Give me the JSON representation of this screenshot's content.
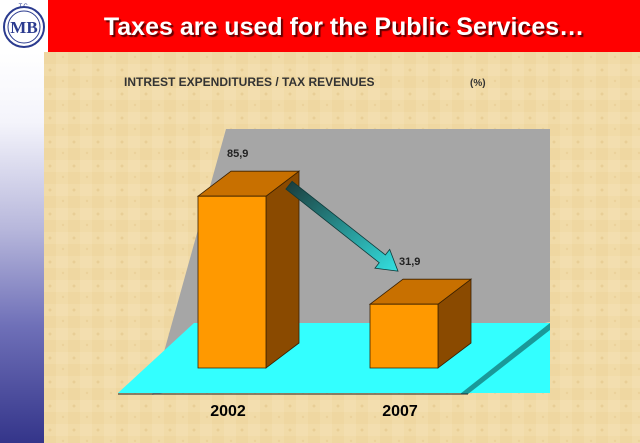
{
  "slide": {
    "title": "Taxes are used for the Public Services…",
    "logo_text": "MB",
    "logo_top": "T.C.",
    "logo_bottom": "MALIYE BAKANLIGI"
  },
  "colors": {
    "header": "#ff0000",
    "bar_front": "#ff9900",
    "bar_side": "#8a4a00",
    "bar_top": "#c87000",
    "floor": "#33ffff",
    "back_wall": "#a6a6a6",
    "arrow": "#22c8c8"
  },
  "chart_data": {
    "type": "bar",
    "title": "INTREST EXPENDITURES / TAX REVENUES",
    "title_unit": "(%)",
    "categories": [
      "2002",
      "2007"
    ],
    "values": [
      85.9,
      31.9
    ],
    "value_labels": [
      "85,9",
      "31,9"
    ],
    "ylim": [
      0,
      120
    ],
    "grid": false,
    "legend": "none",
    "annotation": "arrow from 2002 bar to 2007 bar"
  }
}
